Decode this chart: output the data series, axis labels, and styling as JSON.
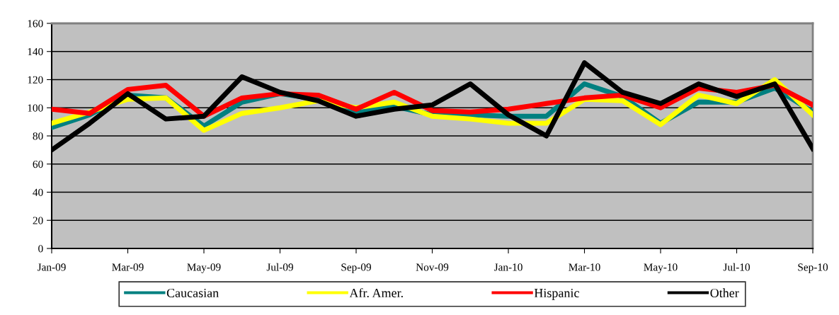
{
  "chart_data": {
    "type": "line",
    "categories": [
      "Jan-09",
      null,
      "Mar-09",
      null,
      "May-09",
      null,
      "Jul-09",
      null,
      "Sep-09",
      null,
      "Nov-09",
      null,
      "Jan-10",
      null,
      "Mar-10",
      null,
      "May-10",
      null,
      "Jul-10",
      null,
      "Sep-10"
    ],
    "series": [
      {
        "name": "Caucasian",
        "color": "#008080",
        "values": [
          86,
          95,
          109,
          107,
          87,
          104,
          110,
          106,
          97,
          101,
          95,
          95,
          94,
          94,
          117,
          108,
          89,
          104,
          104,
          114,
          97
        ]
      },
      {
        "name": "Afr. Amer.",
        "color": "#ffff00",
        "values": [
          89,
          97,
          106,
          107,
          84,
          96,
          100,
          105,
          100,
          104,
          94,
          92,
          89,
          89,
          106,
          105,
          88,
          109,
          103,
          120,
          95
        ]
      },
      {
        "name": "Hispanic",
        "color": "#ff0000",
        "values": [
          99,
          96,
          113,
          116,
          94,
          107,
          110,
          109,
          99,
          111,
          98,
          97,
          99,
          103,
          107,
          109,
          100,
          114,
          111,
          116,
          102
        ]
      },
      {
        "name": "Other",
        "color": "#000000",
        "values": [
          70,
          89,
          110,
          92,
          94,
          122,
          111,
          105,
          94,
          99,
          102,
          117,
          95,
          80,
          132,
          111,
          103,
          117,
          108,
          117,
          71
        ]
      }
    ],
    "ylim": [
      0,
      160
    ],
    "yticks": [
      0,
      20,
      40,
      60,
      80,
      100,
      120,
      140,
      160
    ],
    "grid": "y",
    "legend": "bottom",
    "marker": "none",
    "line_style": "solid"
  }
}
